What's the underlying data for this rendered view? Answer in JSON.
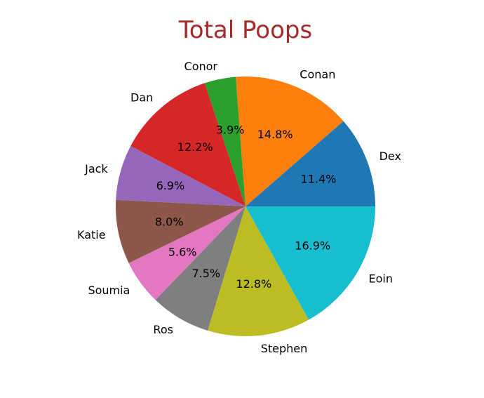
{
  "chart_data": {
    "type": "pie",
    "title": "Total Poops",
    "title_color": "#a52a2a",
    "slices": [
      {
        "label": "Dex",
        "value": 11.4,
        "pct_label": "11.4%",
        "color": "#1f77b4"
      },
      {
        "label": "Conan",
        "value": 14.8,
        "pct_label": "14.8%",
        "color": "#ff7f0e"
      },
      {
        "label": "Conor",
        "value": 3.9,
        "pct_label": "3.9%",
        "color": "#2ca02c"
      },
      {
        "label": "Dan",
        "value": 12.2,
        "pct_label": "12.2%",
        "color": "#d62728"
      },
      {
        "label": "Jack",
        "value": 6.9,
        "pct_label": "6.9%",
        "color": "#9467bd"
      },
      {
        "label": "Katie",
        "value": 8.0,
        "pct_label": "8.0%",
        "color": "#8c564b"
      },
      {
        "label": "Soumia",
        "value": 5.6,
        "pct_label": "5.6%",
        "color": "#e377c2"
      },
      {
        "label": "Ros",
        "value": 7.5,
        "pct_label": "7.5%",
        "color": "#7f7f7f"
      },
      {
        "label": "Stephen",
        "value": 12.8,
        "pct_label": "12.8%",
        "color": "#bcbd22"
      },
      {
        "label": "Eoin",
        "value": 16.9,
        "pct_label": "16.9%",
        "color": "#17becf"
      }
    ],
    "start_angle_deg": 0,
    "direction": "counterclockwise"
  }
}
